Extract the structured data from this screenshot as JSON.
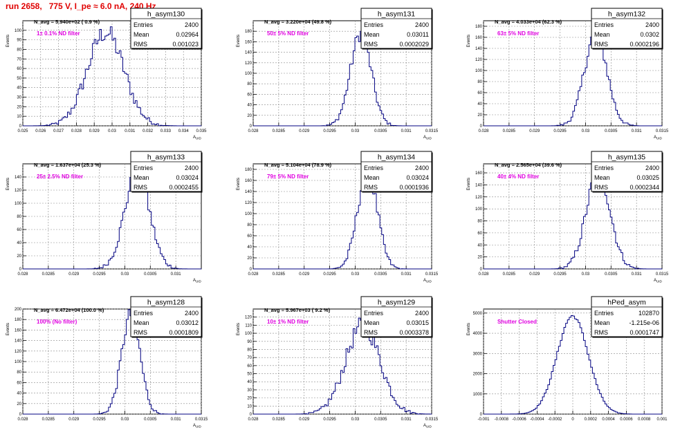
{
  "header": {
    "title": "run 2658,   775 V, I_pe ≈ 6.0 nA, 240 Hz"
  },
  "colors": {
    "hist_line": "#000080",
    "annotation": "#e000e0",
    "title": "#e00000",
    "grid": "#888888"
  },
  "chart_data": [
    {
      "type": "bar",
      "name": "h_asym130",
      "ylabel": "Events",
      "xlabel": "A_UID",
      "navg": "N_avg = 5.940e+02 ( 0.9 %)",
      "filter": "1± 0.1% ND filter",
      "stats": {
        "entries": "2400",
        "mean": "0.02964",
        "rms": "0.001023"
      },
      "xlim": [
        0.025,
        0.035
      ],
      "xticks": [
        "0.025",
        "0.026",
        "0.027",
        "0.028",
        "0.029",
        "0.03",
        "0.031",
        "0.032",
        "0.033",
        "0.034",
        "0.035"
      ],
      "ylim": [
        0,
        110
      ],
      "yticks": [
        0,
        10,
        20,
        30,
        40,
        50,
        60,
        70,
        80,
        90,
        100
      ],
      "mu": 0.02964,
      "sigma": 0.001023,
      "peak": 98
    },
    {
      "type": "bar",
      "name": "h_asym131",
      "ylabel": "Events",
      "xlabel": "A_UID",
      "navg": "N_avg = 3.220e+04 (49.8 %)",
      "filter": "50± 5% ND filter",
      "stats": {
        "entries": "2400",
        "mean": "0.03011",
        "rms": "0.0002029"
      },
      "xlim": [
        0.028,
        0.0315
      ],
      "xticks": [
        "0.028",
        "0.0285",
        "0.029",
        "0.0295",
        "0.03",
        "0.0305",
        "0.031",
        "0.0315"
      ],
      "ylim": [
        0,
        200
      ],
      "yticks": [
        0,
        20,
        40,
        60,
        80,
        100,
        120,
        140,
        160,
        180
      ],
      "mu": 0.03011,
      "sigma": 0.0002029,
      "peak": 176
    },
    {
      "type": "bar",
      "name": "h_asym132",
      "ylabel": "Events",
      "xlabel": "A_UID",
      "navg": "N_avg = 4.033e+04 (62.3 %)",
      "filter": "63± 5% ND filter",
      "stats": {
        "entries": "2400",
        "mean": "0.0302",
        "rms": "0.0002196"
      },
      "xlim": [
        0.028,
        0.0315
      ],
      "xticks": [
        "0.028",
        "0.0285",
        "0.029",
        "0.0295",
        "0.03",
        "0.0305",
        "0.031",
        "0.0315"
      ],
      "ylim": [
        0,
        190
      ],
      "yticks": [
        0,
        20,
        40,
        60,
        80,
        100,
        120,
        140,
        160,
        180
      ],
      "mu": 0.0302,
      "sigma": 0.0002196,
      "peak": 168
    },
    {
      "type": "bar",
      "name": "h_asym133",
      "ylabel": "Events",
      "xlabel": "A_UID",
      "navg": "N_avg = 1.637e+04 (25.3 %)",
      "filter": "25± 2.5% ND filter",
      "stats": {
        "entries": "2400",
        "mean": "0.03024",
        "rms": "0.0002455"
      },
      "xlim": [
        0.028,
        0.0315
      ],
      "xticks": [
        "0.028",
        "0.0285",
        "0.029",
        "0.0295",
        "0.03",
        "0.0305",
        "0.031"
      ],
      "ylim": [
        0,
        160
      ],
      "yticks": [
        0,
        20,
        40,
        60,
        80,
        100,
        120,
        140
      ],
      "mu": 0.03024,
      "sigma": 0.0002455,
      "peak": 146
    },
    {
      "type": "bar",
      "name": "h_asym134",
      "ylabel": "Events",
      "xlabel": "A_UID",
      "navg": "N_avg = 5.104e+04 (78.9 %)",
      "filter": "79± 5% ND filter",
      "stats": {
        "entries": "2400",
        "mean": "0.03024",
        "rms": "0.0001936"
      },
      "xlim": [
        0.028,
        0.0315
      ],
      "xticks": [
        "0.028",
        "0.0285",
        "0.029",
        "0.0295",
        "0.03",
        "0.0305",
        "0.031",
        "0.0315"
      ],
      "ylim": [
        0,
        190
      ],
      "yticks": [
        0,
        20,
        40,
        60,
        80,
        100,
        120,
        140,
        160,
        180
      ],
      "mu": 0.03024,
      "sigma": 0.0001936,
      "peak": 176
    },
    {
      "type": "bar",
      "name": "h_asym135",
      "ylabel": "Events",
      "xlabel": "A_UID",
      "navg": "N_avg = 2.565e+04 (39.6 %)",
      "filter": "40± 4% ND filter",
      "stats": {
        "entries": "2400",
        "mean": "0.03025",
        "rms": "0.0002344"
      },
      "xlim": [
        0.028,
        0.0315
      ],
      "xticks": [
        "0.028",
        "0.0285",
        "0.029",
        "0.0295",
        "0.03",
        "0.0305",
        "0.031",
        "0.0315"
      ],
      "ylim": [
        0,
        175
      ],
      "yticks": [
        0,
        20,
        40,
        60,
        80,
        100,
        120,
        140,
        160
      ],
      "mu": 0.03025,
      "sigma": 0.0002344,
      "peak": 160
    },
    {
      "type": "bar",
      "name": "h_asym128",
      "ylabel": "Events",
      "xlabel": "A_UID",
      "navg": "N_avg = 6.472e+04 (100.0 %)",
      "filter": "100% (No filter)",
      "stats": {
        "entries": "2400",
        "mean": "0.03012",
        "rms": "0.0001809"
      },
      "xlim": [
        0.028,
        0.0315
      ],
      "xticks": [
        "0.028",
        "0.0285",
        "0.029",
        "0.0295",
        "0.03",
        "0.0305",
        "0.031",
        "0.0315"
      ],
      "ylim": [
        0,
        200
      ],
      "yticks": [
        0,
        20,
        40,
        60,
        80,
        100,
        120,
        140,
        160,
        180,
        200
      ],
      "mu": 0.03012,
      "sigma": 0.0001809,
      "peak": 190
    },
    {
      "type": "bar",
      "name": "h_asym129",
      "ylabel": "Events",
      "xlabel": "A_UID",
      "navg": "N_avg = 5.967e+03 ( 9.2 %)",
      "filter": "10± 1% ND filter",
      "stats": {
        "entries": "2400",
        "mean": "0.03015",
        "rms": "0.0003378"
      },
      "xlim": [
        0.028,
        0.0315
      ],
      "xticks": [
        "0.028",
        "0.0285",
        "0.029",
        "0.0295",
        "0.03",
        "0.0305",
        "0.031",
        "0.0315"
      ],
      "ylim": [
        0,
        130
      ],
      "yticks": [
        0,
        10,
        20,
        30,
        40,
        50,
        60,
        70,
        80,
        90,
        100,
        110,
        120
      ],
      "mu": 0.03015,
      "sigma": 0.0003378,
      "peak": 110
    },
    {
      "type": "bar",
      "name": "hPed_asym",
      "ylabel": "Events",
      "xlabel": "",
      "navg": "",
      "filter": "Shutter Closed",
      "stats": {
        "entries": "102870",
        "mean": "-1.215e-06",
        "rms": "0.0001747"
      },
      "xlim": [
        -0.001,
        0.001
      ],
      "xticks": [
        "-0.001",
        "-0.0008",
        "-0.0006",
        "-0.0004",
        "-0.0002",
        "0",
        "0.0002",
        "0.0004",
        "0.0006",
        "0.0008",
        "0.001"
      ],
      "ylim": [
        0,
        5200
      ],
      "yticks": [
        0,
        1000,
        2000,
        3000,
        4000,
        5000
      ],
      "mu": -1.215e-06,
      "sigma": 0.0001747,
      "peak": 4860
    }
  ]
}
